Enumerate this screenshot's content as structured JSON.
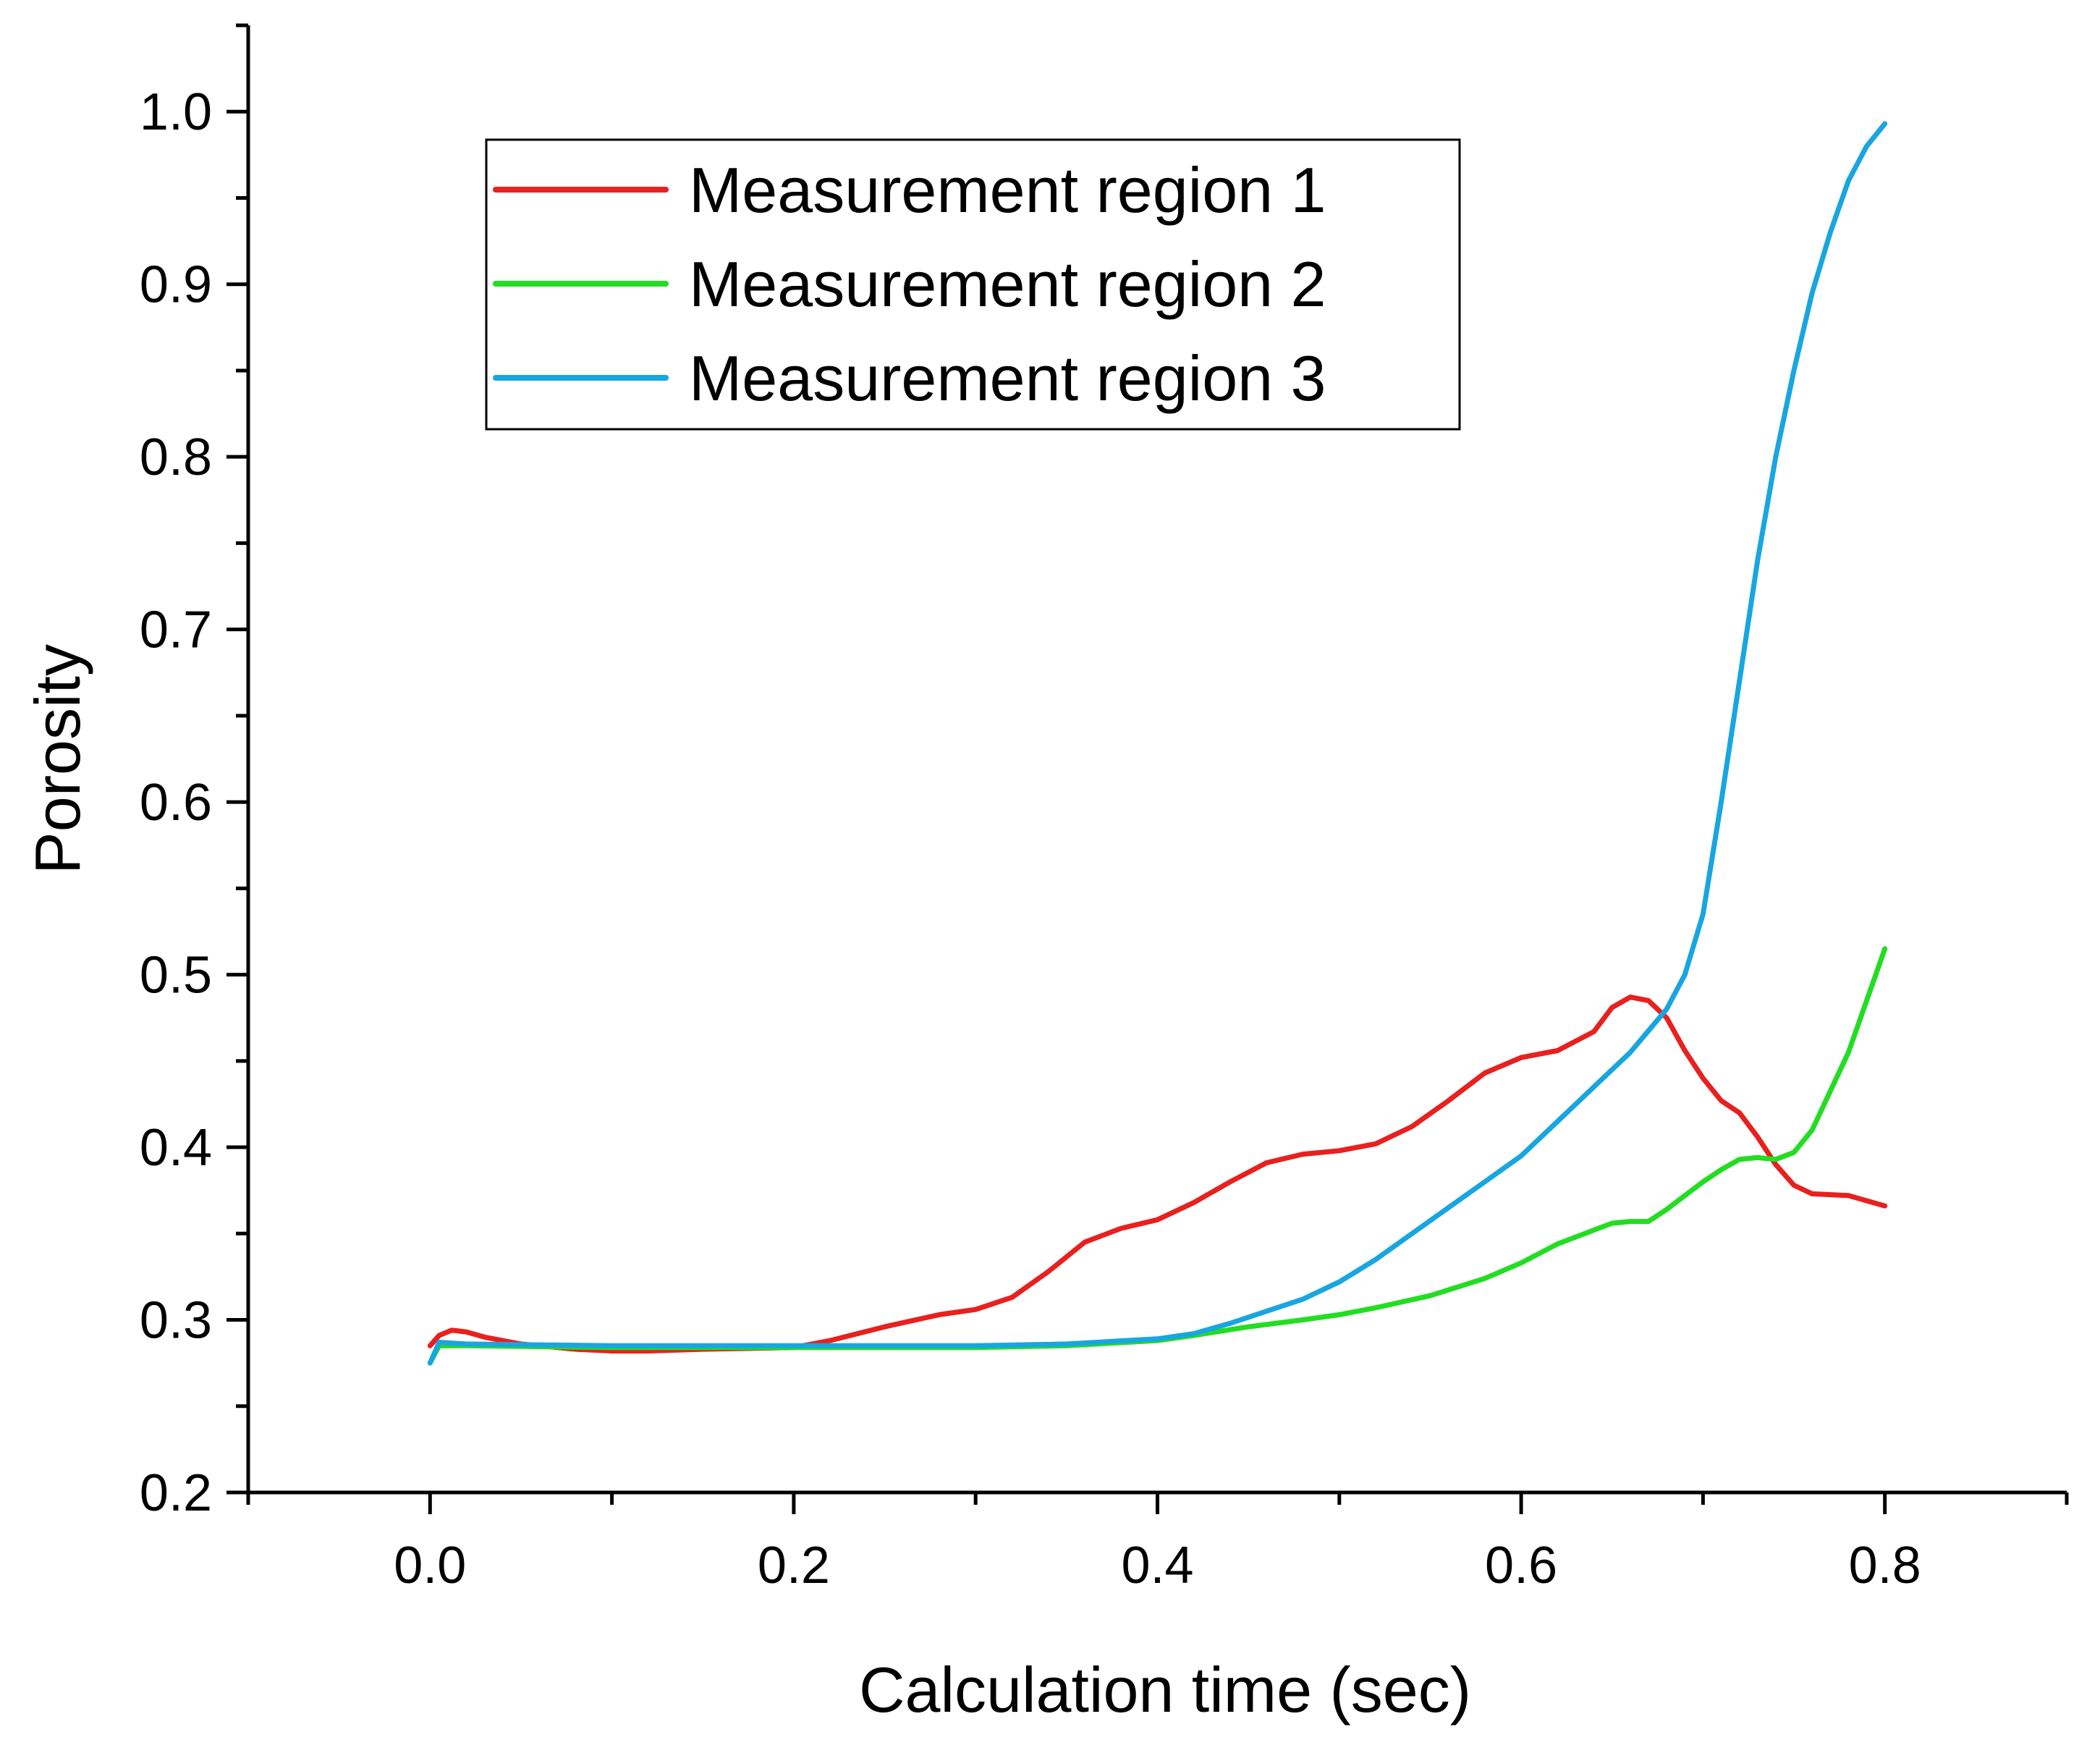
{
  "chart_data": {
    "type": "line",
    "title": "",
    "xlabel": "Calculation time (sec)",
    "ylabel": "Porosity",
    "xlim": [
      -0.1,
      0.9
    ],
    "ylim": [
      0.2,
      1.05
    ],
    "grid": false,
    "legend_position": "top-left",
    "x_ticks": [
      {
        "value": 0.0,
        "label": "0.0"
      },
      {
        "value": 0.2,
        "label": "0.2"
      },
      {
        "value": 0.4,
        "label": "0.4"
      },
      {
        "value": 0.6,
        "label": "0.6"
      },
      {
        "value": 0.8,
        "label": "0.8"
      }
    ],
    "x_minor_ticks": [
      -0.1,
      0.1,
      0.3,
      0.5,
      0.7,
      0.9
    ],
    "y_ticks": [
      {
        "value": 0.2,
        "label": "0.2"
      },
      {
        "value": 0.3,
        "label": "0.3"
      },
      {
        "value": 0.4,
        "label": "0.4"
      },
      {
        "value": 0.5,
        "label": "0.5"
      },
      {
        "value": 0.6,
        "label": "0.6"
      },
      {
        "value": 0.7,
        "label": "0.7"
      },
      {
        "value": 0.8,
        "label": "0.8"
      },
      {
        "value": 0.9,
        "label": "0.9"
      },
      {
        "value": 1.0,
        "label": "1.0"
      }
    ],
    "y_minor_ticks": [
      0.25,
      0.35,
      0.45,
      0.55,
      0.65,
      0.75,
      0.85,
      0.95,
      1.05
    ],
    "series": [
      {
        "name": "Measurement region 1",
        "color": "#e8201e",
        "x": [
          0.0,
          0.005,
          0.012,
          0.02,
          0.03,
          0.05,
          0.08,
          0.1,
          0.12,
          0.15,
          0.2,
          0.22,
          0.25,
          0.28,
          0.3,
          0.32,
          0.34,
          0.36,
          0.38,
          0.4,
          0.42,
          0.44,
          0.46,
          0.48,
          0.5,
          0.52,
          0.54,
          0.56,
          0.58,
          0.6,
          0.62,
          0.64,
          0.65,
          0.66,
          0.67,
          0.68,
          0.69,
          0.7,
          0.71,
          0.72,
          0.73,
          0.74,
          0.75,
          0.76,
          0.78,
          0.8
        ],
        "y": [
          0.285,
          0.291,
          0.294,
          0.293,
          0.29,
          0.286,
          0.283,
          0.282,
          0.282,
          0.283,
          0.284,
          0.288,
          0.296,
          0.303,
          0.306,
          0.313,
          0.328,
          0.345,
          0.353,
          0.358,
          0.368,
          0.38,
          0.391,
          0.396,
          0.398,
          0.402,
          0.412,
          0.427,
          0.443,
          0.452,
          0.456,
          0.467,
          0.481,
          0.487,
          0.485,
          0.475,
          0.456,
          0.44,
          0.427,
          0.42,
          0.406,
          0.39,
          0.378,
          0.373,
          0.372,
          0.366
        ]
      },
      {
        "name": "Measurement region 2",
        "color": "#22dd22",
        "x": [
          0.0,
          0.005,
          0.02,
          0.1,
          0.2,
          0.3,
          0.35,
          0.4,
          0.42,
          0.45,
          0.48,
          0.5,
          0.52,
          0.55,
          0.58,
          0.6,
          0.62,
          0.64,
          0.65,
          0.66,
          0.67,
          0.68,
          0.69,
          0.7,
          0.71,
          0.72,
          0.73,
          0.74,
          0.75,
          0.76,
          0.78,
          0.8
        ],
        "y": [
          0.275,
          0.285,
          0.285,
          0.284,
          0.284,
          0.284,
          0.285,
          0.288,
          0.291,
          0.296,
          0.3,
          0.303,
          0.307,
          0.314,
          0.324,
          0.333,
          0.344,
          0.352,
          0.356,
          0.357,
          0.357,
          0.364,
          0.372,
          0.38,
          0.387,
          0.393,
          0.394,
          0.393,
          0.397,
          0.41,
          0.455,
          0.515
        ]
      },
      {
        "name": "Measurement region 3",
        "color": "#18a6e0",
        "x": [
          0.0,
          0.005,
          0.02,
          0.1,
          0.2,
          0.3,
          0.35,
          0.4,
          0.42,
          0.44,
          0.46,
          0.48,
          0.5,
          0.52,
          0.54,
          0.56,
          0.58,
          0.6,
          0.62,
          0.64,
          0.66,
          0.68,
          0.69,
          0.7,
          0.71,
          0.72,
          0.73,
          0.74,
          0.75,
          0.76,
          0.77,
          0.78,
          0.79,
          0.8
        ],
        "y": [
          0.275,
          0.287,
          0.286,
          0.285,
          0.285,
          0.285,
          0.286,
          0.289,
          0.292,
          0.298,
          0.305,
          0.312,
          0.322,
          0.335,
          0.35,
          0.365,
          0.38,
          0.395,
          0.415,
          0.435,
          0.455,
          0.48,
          0.5,
          0.535,
          0.6,
          0.67,
          0.74,
          0.8,
          0.85,
          0.895,
          0.93,
          0.96,
          0.98,
          0.993
        ]
      }
    ]
  }
}
